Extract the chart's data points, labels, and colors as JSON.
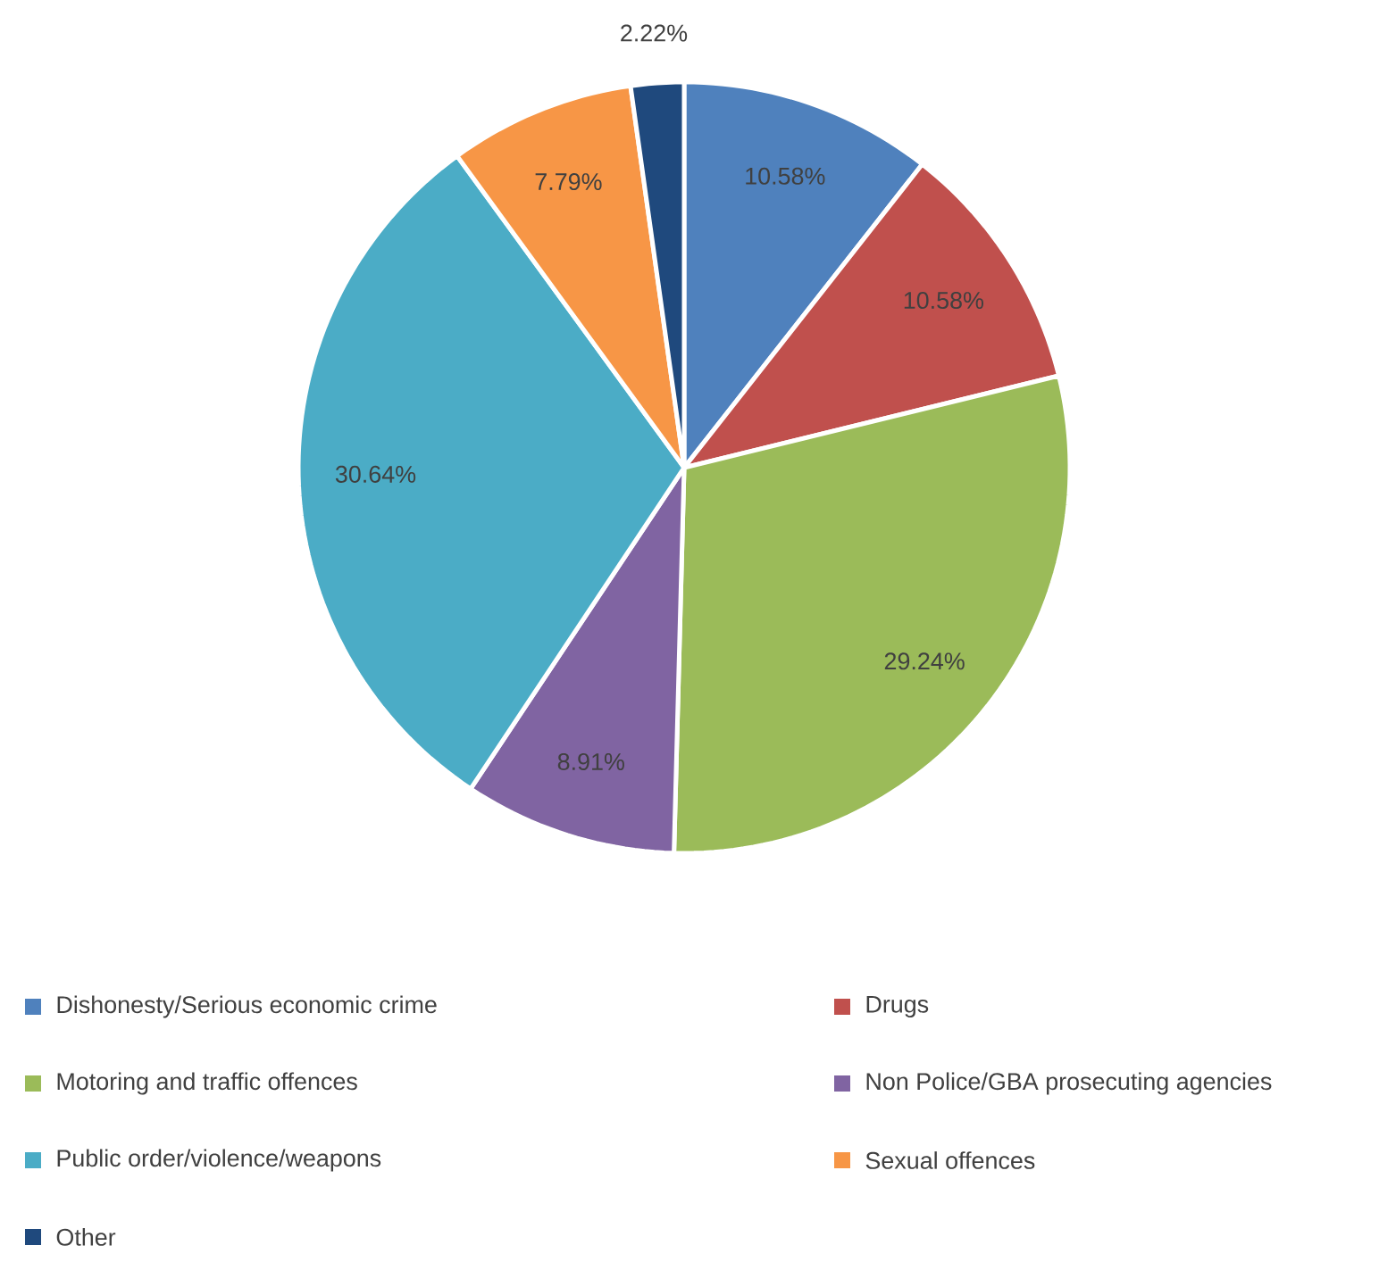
{
  "chart_data": {
    "type": "pie",
    "categories": [
      "Dishonesty/Serious economic crime",
      "Drugs",
      "Motoring and traffic offences",
      "Non Police/GBA prosecuting agencies",
      "Public order/violence/weapons",
      "Sexual offences",
      "Other"
    ],
    "values": [
      10.58,
      10.58,
      29.24,
      8.91,
      30.64,
      7.79,
      2.22
    ],
    "value_labels": [
      "10.58%",
      "10.58%",
      "29.24%",
      "8.91%",
      "30.64%",
      "7.79%",
      "2.22%"
    ],
    "colors": [
      "#4f81bd",
      "#c0504d",
      "#9bbb59",
      "#8064a2",
      "#4bacc6",
      "#f79646",
      "#1f497d"
    ],
    "legend": "bottom"
  }
}
